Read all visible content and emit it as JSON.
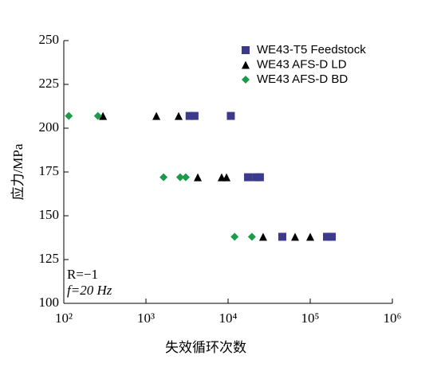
{
  "chart_data": {
    "type": "scatter",
    "xlabel": "失效循环次数",
    "ylabel": "应力/MPa",
    "annotations": [
      "R=−1",
      "f=20 Hz"
    ],
    "xscale": "log",
    "xlim": [
      100,
      1000000
    ],
    "xticks": [
      {
        "value": 100,
        "label": "10²"
      },
      {
        "value": 1000,
        "label": "10³"
      },
      {
        "value": 10000,
        "label": "10⁴"
      },
      {
        "value": 100000,
        "label": "10⁵"
      },
      {
        "value": 1000000,
        "label": "10⁶"
      }
    ],
    "ylim": [
      100,
      250
    ],
    "yticks": [
      100,
      125,
      150,
      175,
      200,
      225,
      250
    ],
    "legend": "upper right",
    "series": [
      {
        "name": "WE43-T5 Feedstock",
        "color": "#3d3a8c",
        "marker": "square",
        "x": [
          3400,
          3900,
          10800,
          17500,
          21900,
          24400,
          45700,
          160000,
          183000
        ],
        "values": [
          207,
          207,
          207,
          172,
          172,
          172,
          138,
          138,
          138
        ]
      },
      {
        "name": "WE43 AFS-D LD",
        "color": "#000000",
        "marker": "triangle",
        "x": [
          300,
          1340,
          2500,
          4280,
          8350,
          9570,
          26700,
          65400,
          100000
        ],
        "values": [
          207,
          207,
          207,
          172,
          172,
          172,
          138,
          138,
          138
        ]
      },
      {
        "name": "WE43 AFS-D BD",
        "color": "#1a9a4a",
        "marker": "diamond",
        "x": [
          115,
          260,
          1640,
          2610,
          3050,
          12000,
          19500
        ],
        "values": [
          207,
          207,
          172,
          172,
          172,
          138,
          138
        ]
      }
    ]
  }
}
